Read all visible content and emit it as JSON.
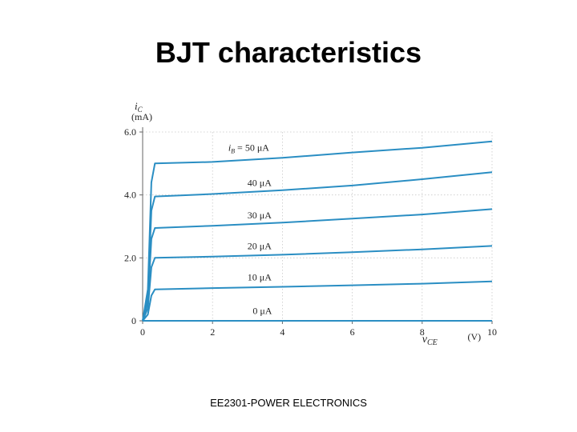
{
  "slide": {
    "title": "BJT characteristics",
    "footer": "EE2301-POWER ELECTRONICS"
  },
  "colors": {
    "curve": "#2a8ec3",
    "grid": "#c8c8c8",
    "axis": "#666666"
  },
  "chart_data": {
    "type": "line",
    "ylabel_symbol": "i",
    "ylabel_sub": "C",
    "ylabel_unit": "(mA)",
    "xlabel_symbol": "v",
    "xlabel_sub": "CE",
    "xlabel_unit": "(V)",
    "xlim": [
      0,
      10
    ],
    "ylim": [
      0,
      6.0
    ],
    "x_ticks": [
      {
        "value": 0,
        "label": "0"
      },
      {
        "value": 2,
        "label": "2"
      },
      {
        "value": 4,
        "label": "4"
      },
      {
        "value": 6,
        "label": "6"
      },
      {
        "value": 8,
        "label": "8"
      },
      {
        "value": 10,
        "label": "10"
      }
    ],
    "y_ticks": [
      {
        "value": 0,
        "label": "0"
      },
      {
        "value": 2.0,
        "label": "2.0"
      },
      {
        "value": 4.0,
        "label": "4.0"
      },
      {
        "value": 6.0,
        "label": "6.0"
      }
    ],
    "grid": true,
    "series": [
      {
        "name": "0 μA",
        "ib": 0,
        "x": [
          0,
          10
        ],
        "y": [
          0,
          0
        ]
      },
      {
        "name": "10 μA",
        "ib": 10,
        "x": [
          0,
          0.15,
          0.25,
          0.35,
          2,
          4,
          6,
          8,
          10
        ],
        "y": [
          0,
          0.2,
          0.8,
          1.0,
          1.04,
          1.08,
          1.13,
          1.18,
          1.25
        ]
      },
      {
        "name": "20 μA",
        "ib": 20,
        "x": [
          0,
          0.15,
          0.25,
          0.35,
          2,
          4,
          6,
          8,
          10
        ],
        "y": [
          0,
          0.4,
          1.7,
          2.0,
          2.04,
          2.1,
          2.18,
          2.27,
          2.38
        ]
      },
      {
        "name": "30 μA",
        "ib": 30,
        "x": [
          0,
          0.15,
          0.25,
          0.35,
          2,
          4,
          6,
          8,
          10
        ],
        "y": [
          0,
          0.6,
          2.6,
          2.95,
          3.02,
          3.12,
          3.25,
          3.38,
          3.55
        ]
      },
      {
        "name": "40 μA",
        "ib": 40,
        "x": [
          0,
          0.15,
          0.25,
          0.35,
          2,
          4,
          6,
          8,
          10
        ],
        "y": [
          0,
          0.8,
          3.5,
          3.95,
          4.03,
          4.15,
          4.3,
          4.5,
          4.72
        ]
      },
      {
        "name": "50 μA",
        "ib": 50,
        "x": [
          0,
          0.15,
          0.25,
          0.35,
          2,
          4,
          6,
          8,
          10
        ],
        "y": [
          0,
          1.0,
          4.4,
          5.0,
          5.05,
          5.18,
          5.35,
          5.5,
          5.7
        ]
      }
    ],
    "annotations": [
      {
        "text": "0 μA",
        "x": 3.15,
        "y": 0.22
      },
      {
        "text": "10 μA",
        "x": 3.0,
        "y": 1.28
      },
      {
        "text": "20 μA",
        "x": 3.0,
        "y": 2.28
      },
      {
        "text": "30 μA",
        "x": 3.0,
        "y": 3.26
      },
      {
        "text": "40 μA",
        "x": 3.0,
        "y": 4.28
      },
      {
        "text": "= 50 μA",
        "x": 2.45,
        "y": 5.4,
        "prefix_symbol": "i",
        "prefix_sub": "B"
      }
    ]
  }
}
